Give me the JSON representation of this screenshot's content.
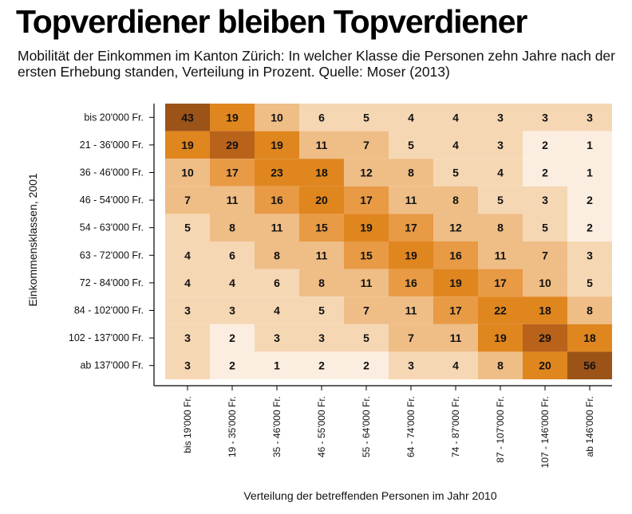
{
  "header": {
    "title": "Topverdiener bleiben Topverdiener",
    "subtitle": "Mobilität der Einkommen im Kanton Zürich: In welcher Klasse die Personen zehn Jahre nach der ersten Erhebung standen, Verteilung in Prozent. Quelle: Moser (2013)"
  },
  "chart_data": {
    "type": "heatmap",
    "title": "Topverdiener bleiben Topverdiener",
    "xlabel": "Verteilung der betreffenden Personen im Jahr 2010",
    "ylabel": "Einkommensklassen, 2001",
    "rows": [
      "bis 20'000 Fr.",
      "21 - 36'000 Fr.",
      "36 - 46'000 Fr.",
      "46 - 54'000 Fr.",
      "54 - 63'000 Fr.",
      "63 - 72'000 Fr.",
      "72 - 84'000 Fr.",
      "84 - 102'000 Fr.",
      "102 - 137'000 Fr.",
      "ab 137'000 Fr."
    ],
    "columns": [
      "bis 19'000 Fr.",
      "19 - 35'000 Fr.",
      "35 - 46'000 Fr.",
      "46 - 55'000 Fr.",
      "55 - 64'000 Fr.",
      "64 - 74'000 Fr.",
      "74 - 87'000 Fr.",
      "87 - 107'000 Fr.",
      "107 - 146'000 Fr.",
      "ab 146'000 Fr."
    ],
    "values": [
      [
        43,
        19,
        10,
        6,
        5,
        4,
        4,
        3,
        3,
        3
      ],
      [
        19,
        29,
        19,
        11,
        7,
        5,
        4,
        3,
        2,
        1
      ],
      [
        10,
        17,
        23,
        18,
        12,
        8,
        5,
        4,
        2,
        1
      ],
      [
        7,
        11,
        16,
        20,
        17,
        11,
        8,
        5,
        3,
        2
      ],
      [
        5,
        8,
        11,
        15,
        19,
        17,
        12,
        8,
        5,
        2
      ],
      [
        4,
        6,
        8,
        11,
        15,
        19,
        16,
        11,
        7,
        3
      ],
      [
        4,
        4,
        6,
        8,
        11,
        16,
        19,
        17,
        10,
        5
      ],
      [
        3,
        3,
        4,
        5,
        7,
        11,
        17,
        22,
        18,
        8
      ],
      [
        3,
        2,
        3,
        3,
        5,
        7,
        11,
        19,
        29,
        18
      ],
      [
        3,
        2,
        1,
        2,
        2,
        3,
        4,
        8,
        20,
        56
      ]
    ],
    "colors": [
      "#fbeee0",
      "#f6d7b4",
      "#efbd86",
      "#e89a45",
      "#e0861f",
      "#b9621a",
      "#9b5317"
    ]
  }
}
